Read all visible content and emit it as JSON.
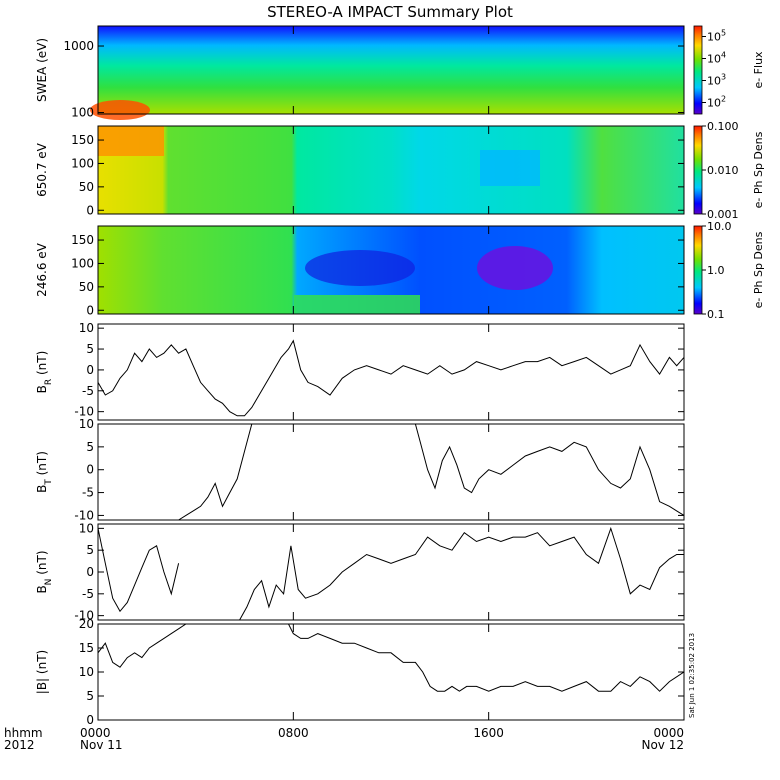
{
  "title": "STEREO-A IMPACT Summary Plot",
  "stamp": "Sat Jun 1 02:35:02 2013",
  "time_axis": {
    "row1_label": "hhmm",
    "row2_label": "2012",
    "ticks": [
      {
        "hour": 0,
        "label": "0000",
        "date": "Nov 11"
      },
      {
        "hour": 8,
        "label": "0800",
        "date": ""
      },
      {
        "hour": 16,
        "label": "1600",
        "date": ""
      },
      {
        "hour": 24,
        "label": "0000",
        "date": "Nov 12"
      }
    ]
  },
  "chart_data": [
    {
      "type": "heatmap",
      "ylabel": "SWEA (eV)",
      "ylog": true,
      "ylim": [
        95,
        2000
      ],
      "yticks": [
        {
          "v": 100,
          "label": "100"
        },
        {
          "v": 1000,
          "label": "1000"
        }
      ],
      "colorbar": {
        "label": "e- Flux",
        "log": true,
        "range": [
          30,
          300000
        ],
        "ticks": [
          {
            "v": 100,
            "label": "10",
            "exp": "2"
          },
          {
            "v": 1000,
            "label": "10",
            "exp": "3"
          },
          {
            "v": 10000,
            "label": "10",
            "exp": "4"
          },
          {
            "v": 100000,
            "label": "10",
            "exp": "5"
          }
        ]
      }
    },
    {
      "type": "heatmap",
      "ylabel": "650.7 eV",
      "ylim": [
        -8,
        180
      ],
      "yticks": [
        {
          "v": 0,
          "label": "0"
        },
        {
          "v": 50,
          "label": "50"
        },
        {
          "v": 100,
          "label": "100"
        },
        {
          "v": 150,
          "label": "150"
        }
      ],
      "colorbar": {
        "label": "e- Ph Sp Dens",
        "log": true,
        "range": [
          0.001,
          0.1
        ],
        "ticks": [
          {
            "v": 0.001,
            "label": "0.001"
          },
          {
            "v": 0.01,
            "label": "0.010"
          },
          {
            "v": 0.1,
            "label": "0.100"
          }
        ]
      }
    },
    {
      "type": "heatmap",
      "ylabel": "246.6 eV",
      "ylim": [
        -8,
        180
      ],
      "yticks": [
        {
          "v": 0,
          "label": "0"
        },
        {
          "v": 50,
          "label": "50"
        },
        {
          "v": 100,
          "label": "100"
        },
        {
          "v": 150,
          "label": "150"
        }
      ],
      "colorbar": {
        "label": "e- Ph Sp Dens",
        "log": true,
        "range": [
          0.1,
          10
        ],
        "ticks": [
          {
            "v": 0.1,
            "label": "0.1"
          },
          {
            "v": 1,
            "label": "1.0"
          },
          {
            "v": 10,
            "label": "10.0"
          }
        ]
      }
    },
    {
      "type": "line",
      "ylabel": "B",
      "ylabel_sub": "R",
      "ylabel_unit": " (nT)",
      "ylim": [
        -12,
        11
      ],
      "yticks": [
        {
          "v": -10,
          "label": "-10"
        },
        {
          "v": -5,
          "label": "-5"
        },
        {
          "v": 0,
          "label": "0"
        },
        {
          "v": 5,
          "label": "5"
        },
        {
          "v": 10,
          "label": "10"
        }
      ],
      "x_hours": [
        0,
        0.3,
        0.6,
        0.9,
        1.2,
        1.5,
        1.8,
        2.1,
        2.4,
        2.7,
        3.0,
        3.3,
        3.6,
        3.9,
        4.2,
        4.5,
        4.8,
        5.1,
        5.4,
        5.7,
        6.0,
        6.3,
        6.6,
        6.9,
        7.2,
        7.5,
        7.8,
        8.0,
        8.3,
        8.6,
        9.0,
        9.5,
        10.0,
        10.5,
        11.0,
        11.5,
        12.0,
        12.5,
        13.0,
        13.5,
        14.0,
        14.5,
        15.0,
        15.5,
        16.0,
        16.5,
        17.0,
        17.5,
        18.0,
        18.5,
        19.0,
        19.5,
        20.0,
        20.5,
        21.0,
        21.4,
        21.8,
        22.2,
        22.6,
        23.0,
        23.4,
        23.7,
        24.0
      ],
      "values": [
        -3,
        -6,
        -5,
        -2,
        0,
        4,
        2,
        5,
        3,
        4,
        6,
        4,
        5,
        1,
        -3,
        -5,
        -7,
        -8,
        -10,
        -11,
        -11,
        -9,
        -6,
        -3,
        0,
        3,
        5,
        7,
        0,
        -3,
        -4,
        -6,
        -2,
        0,
        1,
        0,
        -1,
        1,
        0,
        -1,
        1,
        -1,
        0,
        2,
        1,
        0,
        1,
        2,
        2,
        3,
        1,
        2,
        3,
        1,
        -1,
        0,
        1,
        6,
        2,
        -1,
        3,
        1,
        3
      ]
    },
    {
      "type": "line",
      "ylabel": "B",
      "ylabel_sub": "T",
      "ylabel_unit": " (nT)",
      "ylim": [
        -11,
        10
      ],
      "yticks": [
        {
          "v": -10,
          "label": "-10"
        },
        {
          "v": -5,
          "label": "-5"
        },
        {
          "v": 0,
          "label": "0"
        },
        {
          "v": 5,
          "label": "5"
        },
        {
          "v": 10,
          "label": "10"
        }
      ],
      "x_hours": [
        3.3,
        3.6,
        3.9,
        4.2,
        4.5,
        4.8,
        5.1,
        5.4,
        5.7,
        6.0,
        6.3,
        13.0,
        13.2,
        13.5,
        13.8,
        14.1,
        14.4,
        14.7,
        15.0,
        15.3,
        15.6,
        16.0,
        16.5,
        17.0,
        17.5,
        18.0,
        18.5,
        19.0,
        19.5,
        20.0,
        20.5,
        21.0,
        21.4,
        21.8,
        22.2,
        22.6,
        23.0,
        23.4,
        23.7,
        24.0
      ],
      "values": [
        -11,
        -10,
        -9,
        -8,
        -6,
        -3,
        -8,
        -5,
        -2,
        4,
        10,
        10,
        6,
        0,
        -4,
        2,
        5,
        1,
        -4,
        -5,
        -2,
        0,
        -1,
        1,
        3,
        4,
        5,
        4,
        6,
        5,
        0,
        -3,
        -4,
        -2,
        5,
        0,
        -7,
        -8,
        -9,
        -10
      ]
    },
    {
      "type": "line",
      "ylabel": "B",
      "ylabel_sub": "N",
      "ylabel_unit": " (nT)",
      "ylim": [
        -11,
        11
      ],
      "yticks": [
        {
          "v": -10,
          "label": "-10"
        },
        {
          "v": -5,
          "label": "-5"
        },
        {
          "v": 0,
          "label": "0"
        },
        {
          "v": 5,
          "label": "5"
        },
        {
          "v": 10,
          "label": "10"
        }
      ],
      "x_hours": [
        0,
        0.3,
        0.6,
        0.9,
        1.2,
        1.5,
        1.8,
        2.1,
        2.4,
        2.7,
        3.0,
        3.3,
        5.8,
        6.1,
        6.4,
        6.7,
        7.0,
        7.3,
        7.6,
        7.9,
        8.2,
        8.5,
        9.0,
        9.5,
        10.0,
        10.5,
        11.0,
        11.5,
        12.0,
        12.5,
        13.0,
        13.5,
        14.0,
        14.5,
        15.0,
        15.5,
        16.0,
        16.5,
        17.0,
        17.5,
        18.0,
        18.5,
        19.0,
        19.5,
        20.0,
        20.5,
        21.0,
        21.4,
        21.8,
        22.2,
        22.6,
        23.0,
        23.4,
        23.7,
        24.0
      ],
      "values": [
        10,
        2,
        -6,
        -9,
        -7,
        -3,
        1,
        5,
        6,
        0,
        -5,
        2,
        -11,
        -8,
        -4,
        -2,
        -8,
        -3,
        -5,
        6,
        -4,
        -6,
        -5,
        -3,
        0,
        2,
        4,
        3,
        2,
        3,
        4,
        8,
        6,
        5,
        9,
        7,
        8,
        7,
        8,
        8,
        9,
        6,
        7,
        8,
        4,
        2,
        10,
        3,
        -5,
        -3,
        -4,
        1,
        3,
        4,
        4
      ]
    },
    {
      "type": "line",
      "ylabel": "|B| (nT)",
      "ylim": [
        0,
        20
      ],
      "yticks": [
        {
          "v": 0,
          "label": "0"
        },
        {
          "v": 5,
          "label": "5"
        },
        {
          "v": 10,
          "label": "10"
        },
        {
          "v": 15,
          "label": "15"
        },
        {
          "v": 20,
          "label": "20"
        }
      ],
      "x_hours": [
        0,
        0.3,
        0.6,
        0.9,
        1.2,
        1.5,
        1.8,
        2.1,
        2.4,
        2.7,
        3.0,
        3.3,
        3.6,
        3.9,
        4.2,
        4.5,
        4.8,
        5.1,
        5.4,
        5.7,
        6.0,
        6.3,
        6.6,
        6.9,
        7.2,
        7.5,
        7.8,
        8.0,
        8.3,
        8.6,
        9.0,
        9.5,
        10.0,
        10.5,
        11.0,
        11.5,
        12.0,
        12.5,
        13.0,
        13.3,
        13.6,
        13.9,
        14.2,
        14.5,
        14.8,
        15.1,
        15.5,
        16.0,
        16.5,
        17.0,
        17.5,
        18.0,
        18.5,
        19.0,
        19.5,
        20.0,
        20.5,
        21.0,
        21.4,
        21.8,
        22.2,
        22.6,
        23.0,
        23.4,
        23.7,
        24.0
      ],
      "values": [
        14,
        16,
        12,
        11,
        13,
        14,
        13,
        15,
        16,
        17,
        18,
        19,
        20,
        20,
        20,
        20,
        20,
        20,
        20,
        20,
        20,
        20,
        20,
        20,
        20,
        20,
        20,
        18,
        17,
        17,
        18,
        17,
        16,
        16,
        15,
        14,
        14,
        12,
        12,
        10,
        7,
        6,
        6,
        7,
        6,
        7,
        7,
        6,
        7,
        7,
        8,
        7,
        7,
        6,
        7,
        8,
        6,
        6,
        8,
        7,
        9,
        8,
        6,
        8,
        9,
        10
      ]
    }
  ]
}
